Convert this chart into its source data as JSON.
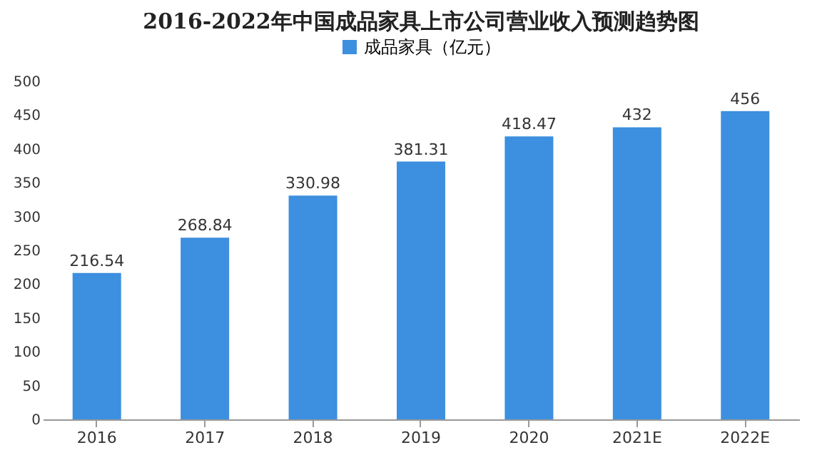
{
  "chart_data": {
    "type": "bar",
    "title": "2016-2022年中国成品家具上市公司营业收入预测趋势图",
    "categories": [
      "2016",
      "2017",
      "2018",
      "2019",
      "2020",
      "2021E",
      "2022E"
    ],
    "series": [
      {
        "name": "成品家具（亿元）",
        "color": "#3d8fdf",
        "values": [
          216.54,
          268.84,
          330.98,
          381.31,
          418.47,
          432,
          456
        ]
      }
    ],
    "ylim": [
      0,
      500
    ],
    "yticks": [
      0,
      50,
      100,
      150,
      200,
      250,
      300,
      350,
      400,
      450,
      500
    ],
    "data_labels": true,
    "legend": "top",
    "grid": false
  }
}
